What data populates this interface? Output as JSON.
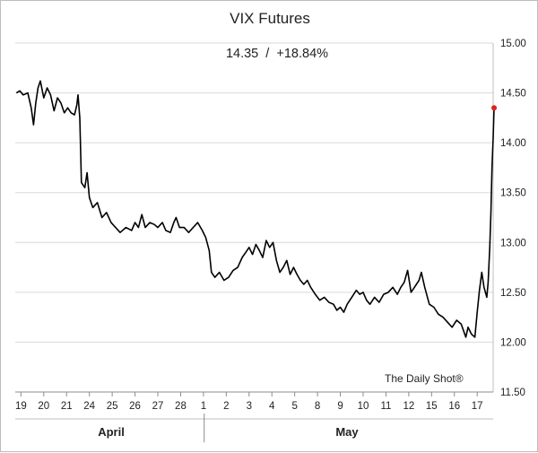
{
  "chart_data": {
    "type": "line",
    "title": "VIX Futures",
    "subtitle": "14.35  /  +18.84%",
    "credit": "The Daily Shot®",
    "y_axis": {
      "position": "right",
      "ylim": [
        11.5,
        15.0
      ],
      "ticks": [
        "15.00",
        "14.50",
        "14.00",
        "13.50",
        "13.00",
        "12.50",
        "12.00",
        "11.50"
      ],
      "tick_values": [
        15.0,
        14.5,
        14.0,
        13.5,
        13.0,
        12.5,
        12.0,
        11.5
      ]
    },
    "x_axis": {
      "tick_labels": [
        "19",
        "20",
        "21",
        "24",
        "25",
        "26",
        "27",
        "28",
        "1",
        "2",
        "3",
        "4",
        "5",
        "8",
        "9",
        "10",
        "11",
        "12",
        "15",
        "16",
        "17"
      ],
      "tick_index": [
        0,
        1,
        2,
        3,
        4,
        5,
        6,
        7,
        8,
        9,
        10,
        11,
        12,
        13,
        14,
        15,
        16,
        17,
        18,
        19,
        20
      ],
      "groups": [
        {
          "label": "April",
          "from": 0,
          "to": 8
        },
        {
          "label": "May",
          "from": 8,
          "to": 20.6
        }
      ],
      "range": [
        -0.25,
        20.7
      ]
    },
    "grid": true,
    "series": [
      {
        "color": "#000000",
        "points": [
          [
            -0.2,
            14.5
          ],
          [
            -0.05,
            14.52
          ],
          [
            0.1,
            14.48
          ],
          [
            0.3,
            14.5
          ],
          [
            0.45,
            14.35
          ],
          [
            0.55,
            14.18
          ],
          [
            0.65,
            14.4
          ],
          [
            0.75,
            14.55
          ],
          [
            0.85,
            14.62
          ],
          [
            1.0,
            14.45
          ],
          [
            1.15,
            14.55
          ],
          [
            1.3,
            14.48
          ],
          [
            1.45,
            14.32
          ],
          [
            1.6,
            14.45
          ],
          [
            1.75,
            14.4
          ],
          [
            1.9,
            14.3
          ],
          [
            2.05,
            14.35
          ],
          [
            2.2,
            14.3
          ],
          [
            2.35,
            14.28
          ],
          [
            2.45,
            14.38
          ],
          [
            2.5,
            14.48
          ],
          [
            2.58,
            14.25
          ],
          [
            2.65,
            13.6
          ],
          [
            2.8,
            13.55
          ],
          [
            2.9,
            13.7
          ],
          [
            3.0,
            13.45
          ],
          [
            3.15,
            13.35
          ],
          [
            3.35,
            13.4
          ],
          [
            3.55,
            13.25
          ],
          [
            3.75,
            13.3
          ],
          [
            3.95,
            13.2
          ],
          [
            4.15,
            13.15
          ],
          [
            4.35,
            13.1
          ],
          [
            4.6,
            13.15
          ],
          [
            4.85,
            13.12
          ],
          [
            5.0,
            13.2
          ],
          [
            5.15,
            13.15
          ],
          [
            5.3,
            13.28
          ],
          [
            5.45,
            13.15
          ],
          [
            5.65,
            13.2
          ],
          [
            5.85,
            13.18
          ],
          [
            6.0,
            13.15
          ],
          [
            6.2,
            13.2
          ],
          [
            6.35,
            13.12
          ],
          [
            6.55,
            13.1
          ],
          [
            6.7,
            13.2
          ],
          [
            6.8,
            13.25
          ],
          [
            6.95,
            13.15
          ],
          [
            7.15,
            13.15
          ],
          [
            7.35,
            13.1
          ],
          [
            7.55,
            13.15
          ],
          [
            7.75,
            13.2
          ],
          [
            7.95,
            13.12
          ],
          [
            8.1,
            13.05
          ],
          [
            8.25,
            12.92
          ],
          [
            8.35,
            12.7
          ],
          [
            8.5,
            12.65
          ],
          [
            8.7,
            12.7
          ],
          [
            8.9,
            12.62
          ],
          [
            9.1,
            12.65
          ],
          [
            9.3,
            12.72
          ],
          [
            9.5,
            12.75
          ],
          [
            9.7,
            12.85
          ],
          [
            9.85,
            12.9
          ],
          [
            10.0,
            12.95
          ],
          [
            10.15,
            12.88
          ],
          [
            10.3,
            12.98
          ],
          [
            10.45,
            12.92
          ],
          [
            10.6,
            12.85
          ],
          [
            10.75,
            13.02
          ],
          [
            10.9,
            12.95
          ],
          [
            11.05,
            13.0
          ],
          [
            11.2,
            12.82
          ],
          [
            11.35,
            12.7
          ],
          [
            11.5,
            12.75
          ],
          [
            11.65,
            12.82
          ],
          [
            11.8,
            12.68
          ],
          [
            11.95,
            12.75
          ],
          [
            12.1,
            12.68
          ],
          [
            12.25,
            12.62
          ],
          [
            12.4,
            12.58
          ],
          [
            12.55,
            12.62
          ],
          [
            12.7,
            12.55
          ],
          [
            12.9,
            12.48
          ],
          [
            13.1,
            12.42
          ],
          [
            13.3,
            12.45
          ],
          [
            13.5,
            12.4
          ],
          [
            13.7,
            12.38
          ],
          [
            13.85,
            12.32
          ],
          [
            14.0,
            12.35
          ],
          [
            14.15,
            12.3
          ],
          [
            14.3,
            12.38
          ],
          [
            14.5,
            12.45
          ],
          [
            14.7,
            12.52
          ],
          [
            14.85,
            12.48
          ],
          [
            15.0,
            12.5
          ],
          [
            15.15,
            12.42
          ],
          [
            15.3,
            12.38
          ],
          [
            15.5,
            12.45
          ],
          [
            15.7,
            12.4
          ],
          [
            15.9,
            12.48
          ],
          [
            16.1,
            12.5
          ],
          [
            16.3,
            12.55
          ],
          [
            16.5,
            12.48
          ],
          [
            16.65,
            12.55
          ],
          [
            16.8,
            12.6
          ],
          [
            16.95,
            12.72
          ],
          [
            17.1,
            12.5
          ],
          [
            17.25,
            12.55
          ],
          [
            17.45,
            12.62
          ],
          [
            17.55,
            12.7
          ],
          [
            17.7,
            12.55
          ],
          [
            17.9,
            12.38
          ],
          [
            18.1,
            12.35
          ],
          [
            18.3,
            12.28
          ],
          [
            18.5,
            12.25
          ],
          [
            18.7,
            12.2
          ],
          [
            18.9,
            12.15
          ],
          [
            19.1,
            12.22
          ],
          [
            19.3,
            12.18
          ],
          [
            19.5,
            12.05
          ],
          [
            19.6,
            12.15
          ],
          [
            19.75,
            12.08
          ],
          [
            19.9,
            12.05
          ],
          [
            20.0,
            12.3
          ],
          [
            20.1,
            12.52
          ],
          [
            20.2,
            12.7
          ],
          [
            20.3,
            12.55
          ],
          [
            20.42,
            12.45
          ],
          [
            20.48,
            12.6
          ],
          [
            20.55,
            12.95
          ],
          [
            20.6,
            13.3
          ],
          [
            20.65,
            13.75
          ],
          [
            20.7,
            14.05
          ],
          [
            20.74,
            14.35
          ]
        ],
        "end_marker_color": "#e02020"
      }
    ]
  }
}
